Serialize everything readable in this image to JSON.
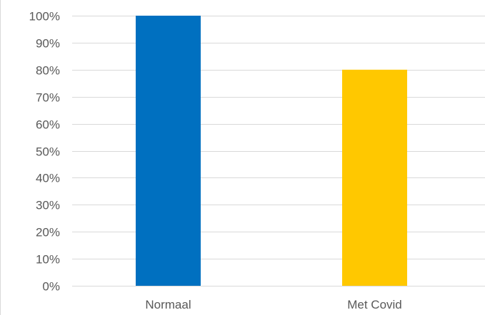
{
  "chart_data": {
    "type": "bar",
    "categories": [
      "Normaal",
      "Met Covid"
    ],
    "values": [
      100,
      80
    ],
    "bar_colors": [
      "#0070c0",
      "#ffc800"
    ],
    "ylim": [
      0,
      100
    ],
    "yticks": [
      0,
      10,
      20,
      30,
      40,
      50,
      60,
      70,
      80,
      90,
      100
    ],
    "ytick_labels": [
      "0%",
      "10%",
      "20%",
      "30%",
      "40%",
      "50%",
      "60%",
      "70%",
      "80%",
      "90%",
      "100%"
    ],
    "grid": true,
    "legend": "none",
    "title": "",
    "xlabel": "",
    "ylabel": "",
    "gridline_color": "#d9d9d9",
    "label_color": "#595959"
  }
}
